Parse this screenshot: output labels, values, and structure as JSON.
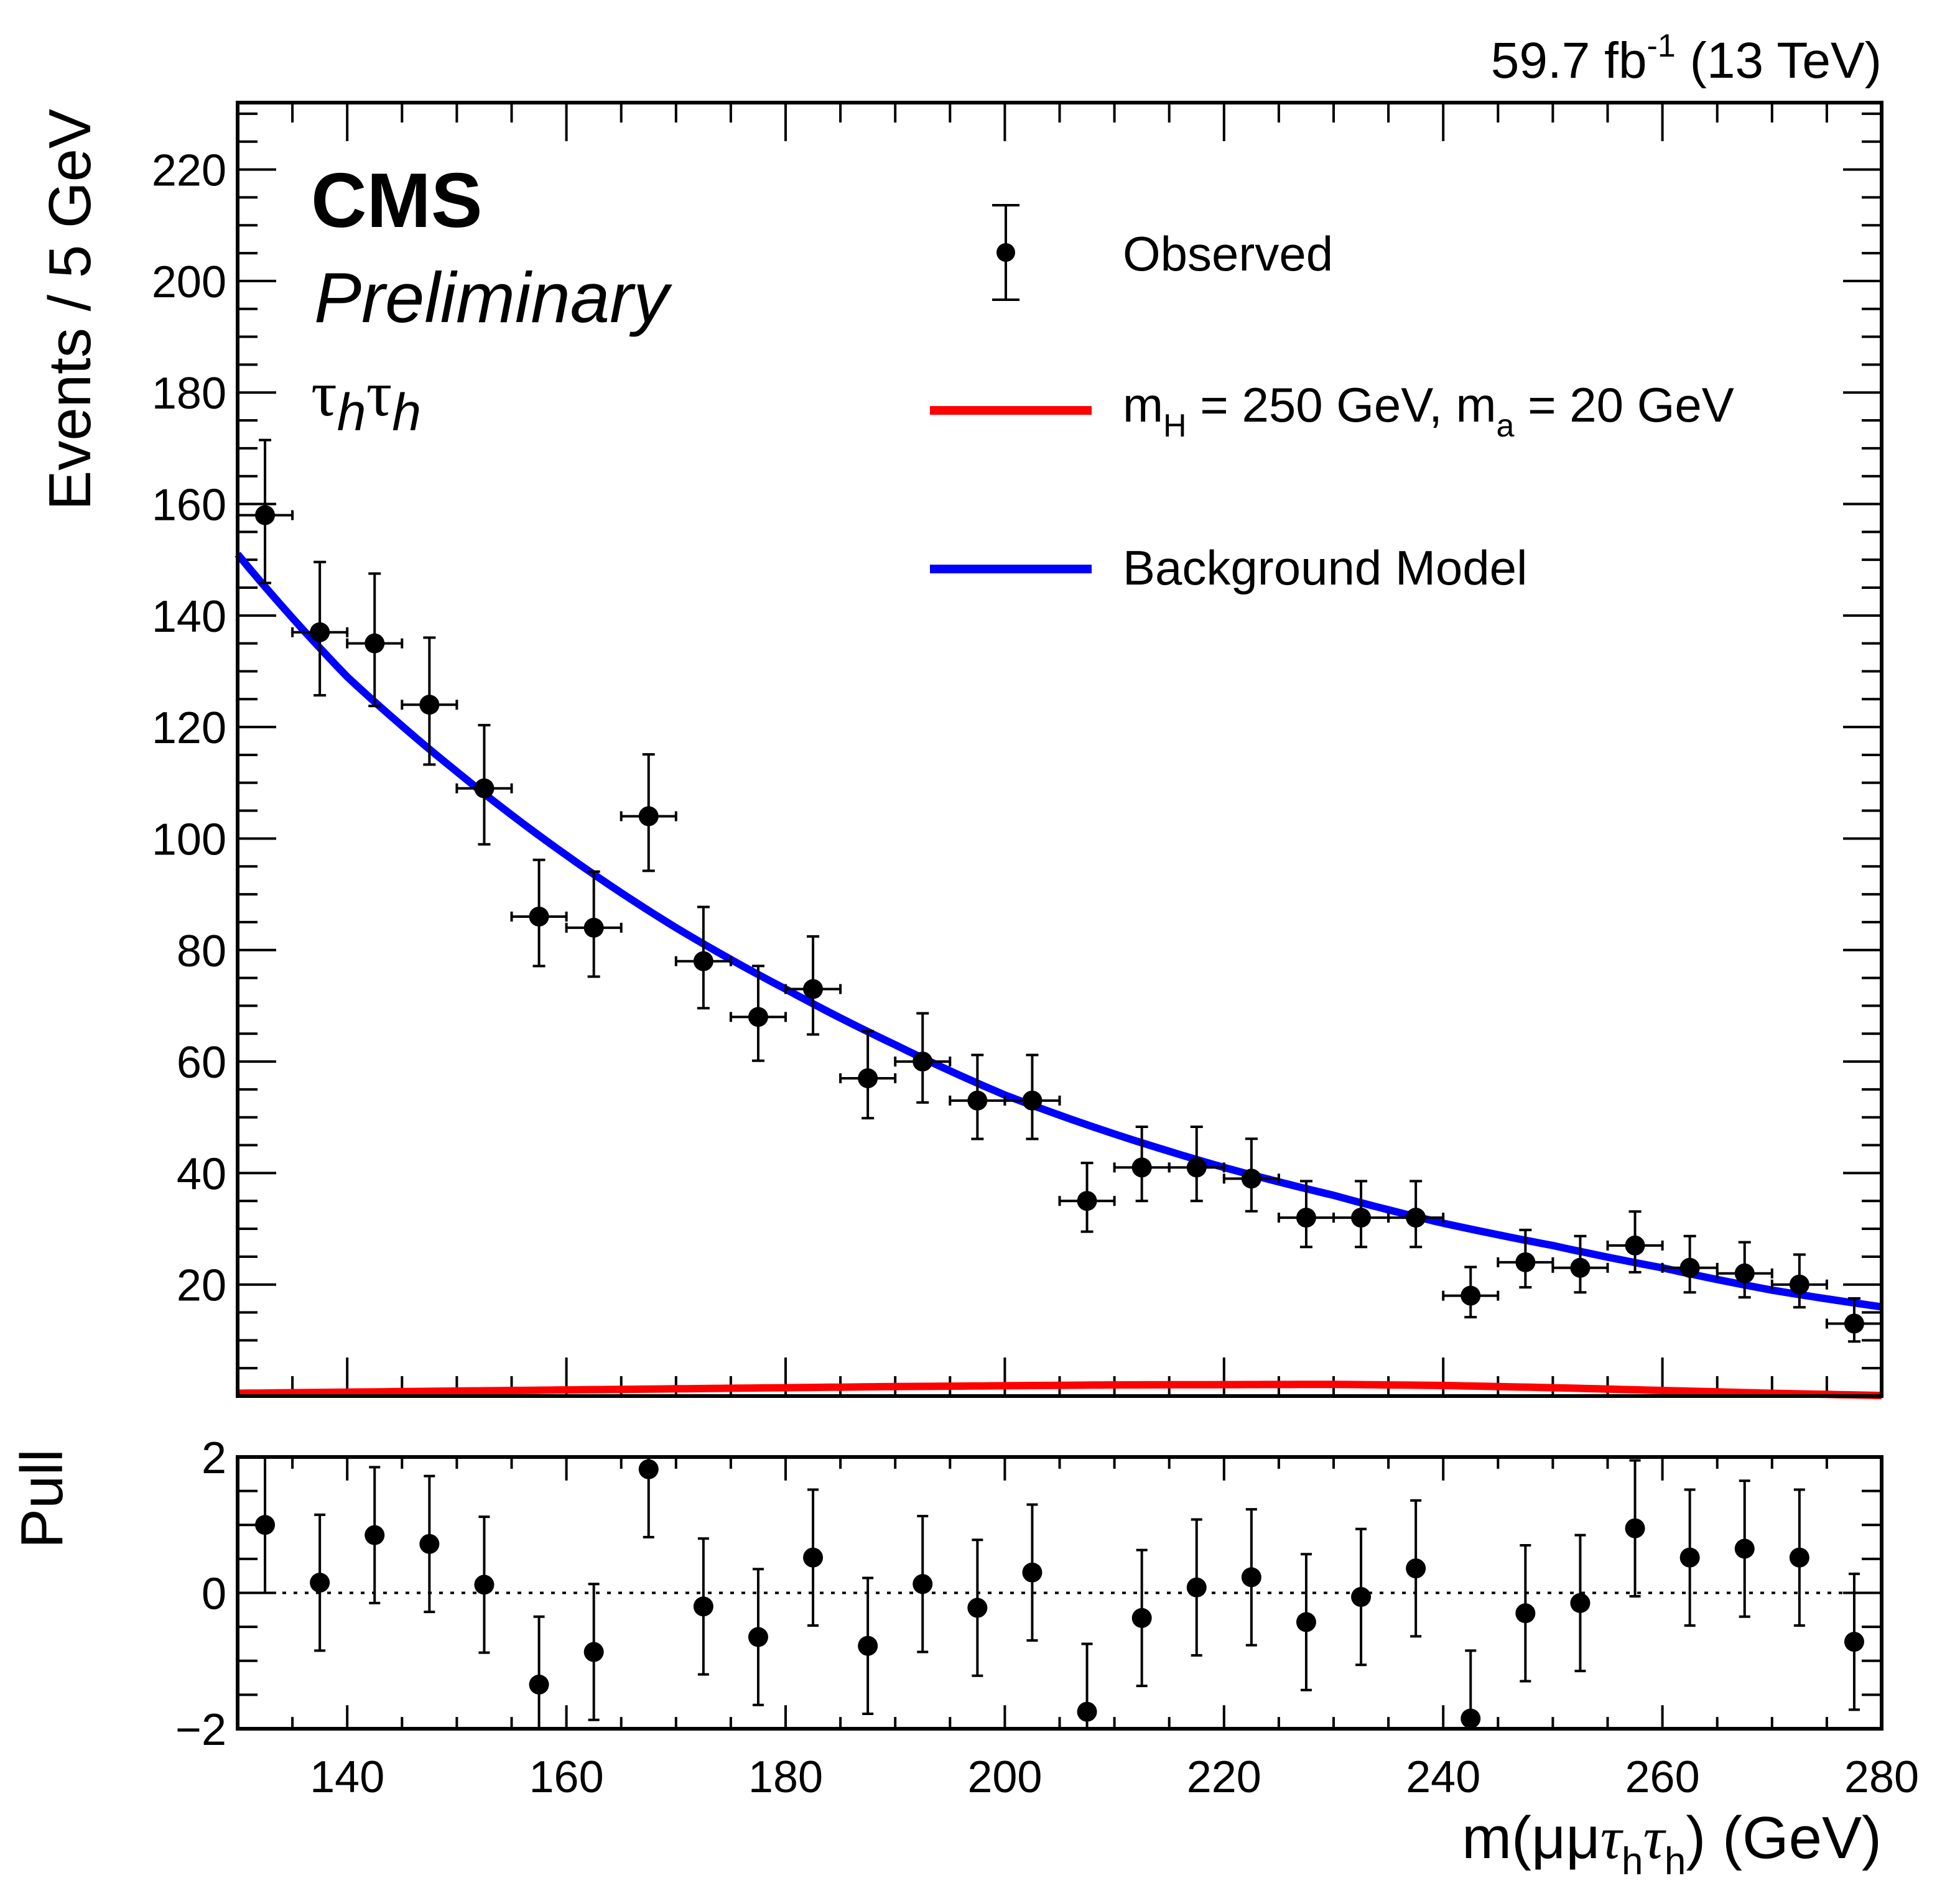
{
  "chart_data": {
    "type": "scatter",
    "lumi_label": {
      "main": "59.7 fb",
      "sup": "-1",
      "tail": " (13 TeV)"
    },
    "experiment": "CMS",
    "status": "Preliminary",
    "channel": {
      "tau": "τ",
      "sub": "h"
    },
    "xlabel": {
      "prefix": "m(μμ",
      "tau": "τ",
      "sub": "h",
      "suffix": ") (GeV)"
    },
    "ylabel": "Events / 5 GeV",
    "pull_ylabel": "Pull",
    "xlim": [
      130,
      280
    ],
    "ylim": [
      0,
      232
    ],
    "pull_ylim": [
      -2,
      2
    ],
    "x_ticks": [
      140,
      160,
      180,
      200,
      220,
      240,
      260,
      280
    ],
    "y_ticks": [
      20,
      40,
      60,
      80,
      100,
      120,
      140,
      160,
      180,
      200,
      220
    ],
    "pull_ticks": [
      2,
      0,
      -2
    ],
    "pull_tick_labels": [
      "2",
      "0",
      "−2"
    ],
    "bin_width": 5,
    "legend": {
      "placement": "top-right",
      "entries": [
        {
          "label": "Observed",
          "marker": "point-errorbar",
          "color": "#000000"
        },
        {
          "label_main": "m",
          "sub1": "H",
          "mid": " = 250 GeV, m",
          "sub2": "a",
          "tail": " = 20 GeV",
          "marker": "line",
          "color": "#ff0000"
        },
        {
          "label": "Background Model",
          "marker": "line",
          "color": "#0000ff"
        }
      ]
    },
    "series": [
      {
        "name": "Observed",
        "x": [
          132.5,
          137.5,
          142.5,
          147.5,
          152.5,
          157.5,
          162.5,
          167.5,
          172.5,
          177.5,
          182.5,
          187.5,
          192.5,
          197.5,
          202.5,
          207.5,
          212.5,
          217.5,
          222.5,
          227.5,
          232.5,
          237.5,
          242.5,
          247.5,
          252.5,
          257.5,
          262.5,
          267.5,
          272.5,
          277.5
        ],
        "y": [
          158,
          137,
          135,
          124,
          109,
          86,
          84,
          104,
          78,
          68,
          73,
          57,
          60,
          53,
          53,
          35,
          41,
          41,
          39,
          32,
          32,
          32,
          18,
          24,
          23,
          27,
          23,
          22,
          20,
          13
        ],
        "yerr": "poisson"
      },
      {
        "name": "Background Model",
        "color": "#0000ff",
        "function": "exponential",
        "x": [
          130,
          140,
          150,
          160,
          170,
          180,
          190,
          200,
          210,
          220,
          230,
          240,
          250,
          260,
          270,
          280
        ],
        "y": [
          151,
          129,
          112,
          97,
          84,
          73,
          63,
          54,
          47,
          41,
          36,
          31,
          27,
          23,
          19,
          16
        ]
      },
      {
        "name": "m_H = 250 GeV, m_a = 20 GeV",
        "color": "#ff0000",
        "x": [
          130,
          150,
          170,
          190,
          210,
          230,
          240,
          250,
          260,
          270,
          280
        ],
        "y": [
          0.5,
          0.9,
          1.3,
          1.7,
          2.0,
          2.1,
          1.9,
          1.5,
          1.0,
          0.5,
          0.1
        ]
      },
      {
        "name": "Pull",
        "x": [
          132.5,
          137.5,
          142.5,
          147.5,
          152.5,
          157.5,
          162.5,
          167.5,
          172.5,
          177.5,
          182.5,
          187.5,
          192.5,
          197.5,
          202.5,
          207.5,
          212.5,
          217.5,
          222.5,
          227.5,
          232.5,
          237.5,
          242.5,
          247.5,
          252.5,
          257.5,
          262.5,
          267.5,
          272.5,
          277.5
        ],
        "y": [
          1.0,
          0.15,
          0.85,
          0.72,
          0.12,
          -1.35,
          -0.87,
          1.82,
          -0.2,
          -0.65,
          0.52,
          -0.78,
          0.13,
          -0.22,
          0.3,
          -1.75,
          -0.37,
          0.08,
          0.23,
          -0.43,
          -0.06,
          0.36,
          -1.85,
          -0.3,
          -0.15,
          0.95,
          0.52,
          0.65,
          0.52,
          -0.72
        ],
        "yerr": 1.0
      }
    ]
  }
}
